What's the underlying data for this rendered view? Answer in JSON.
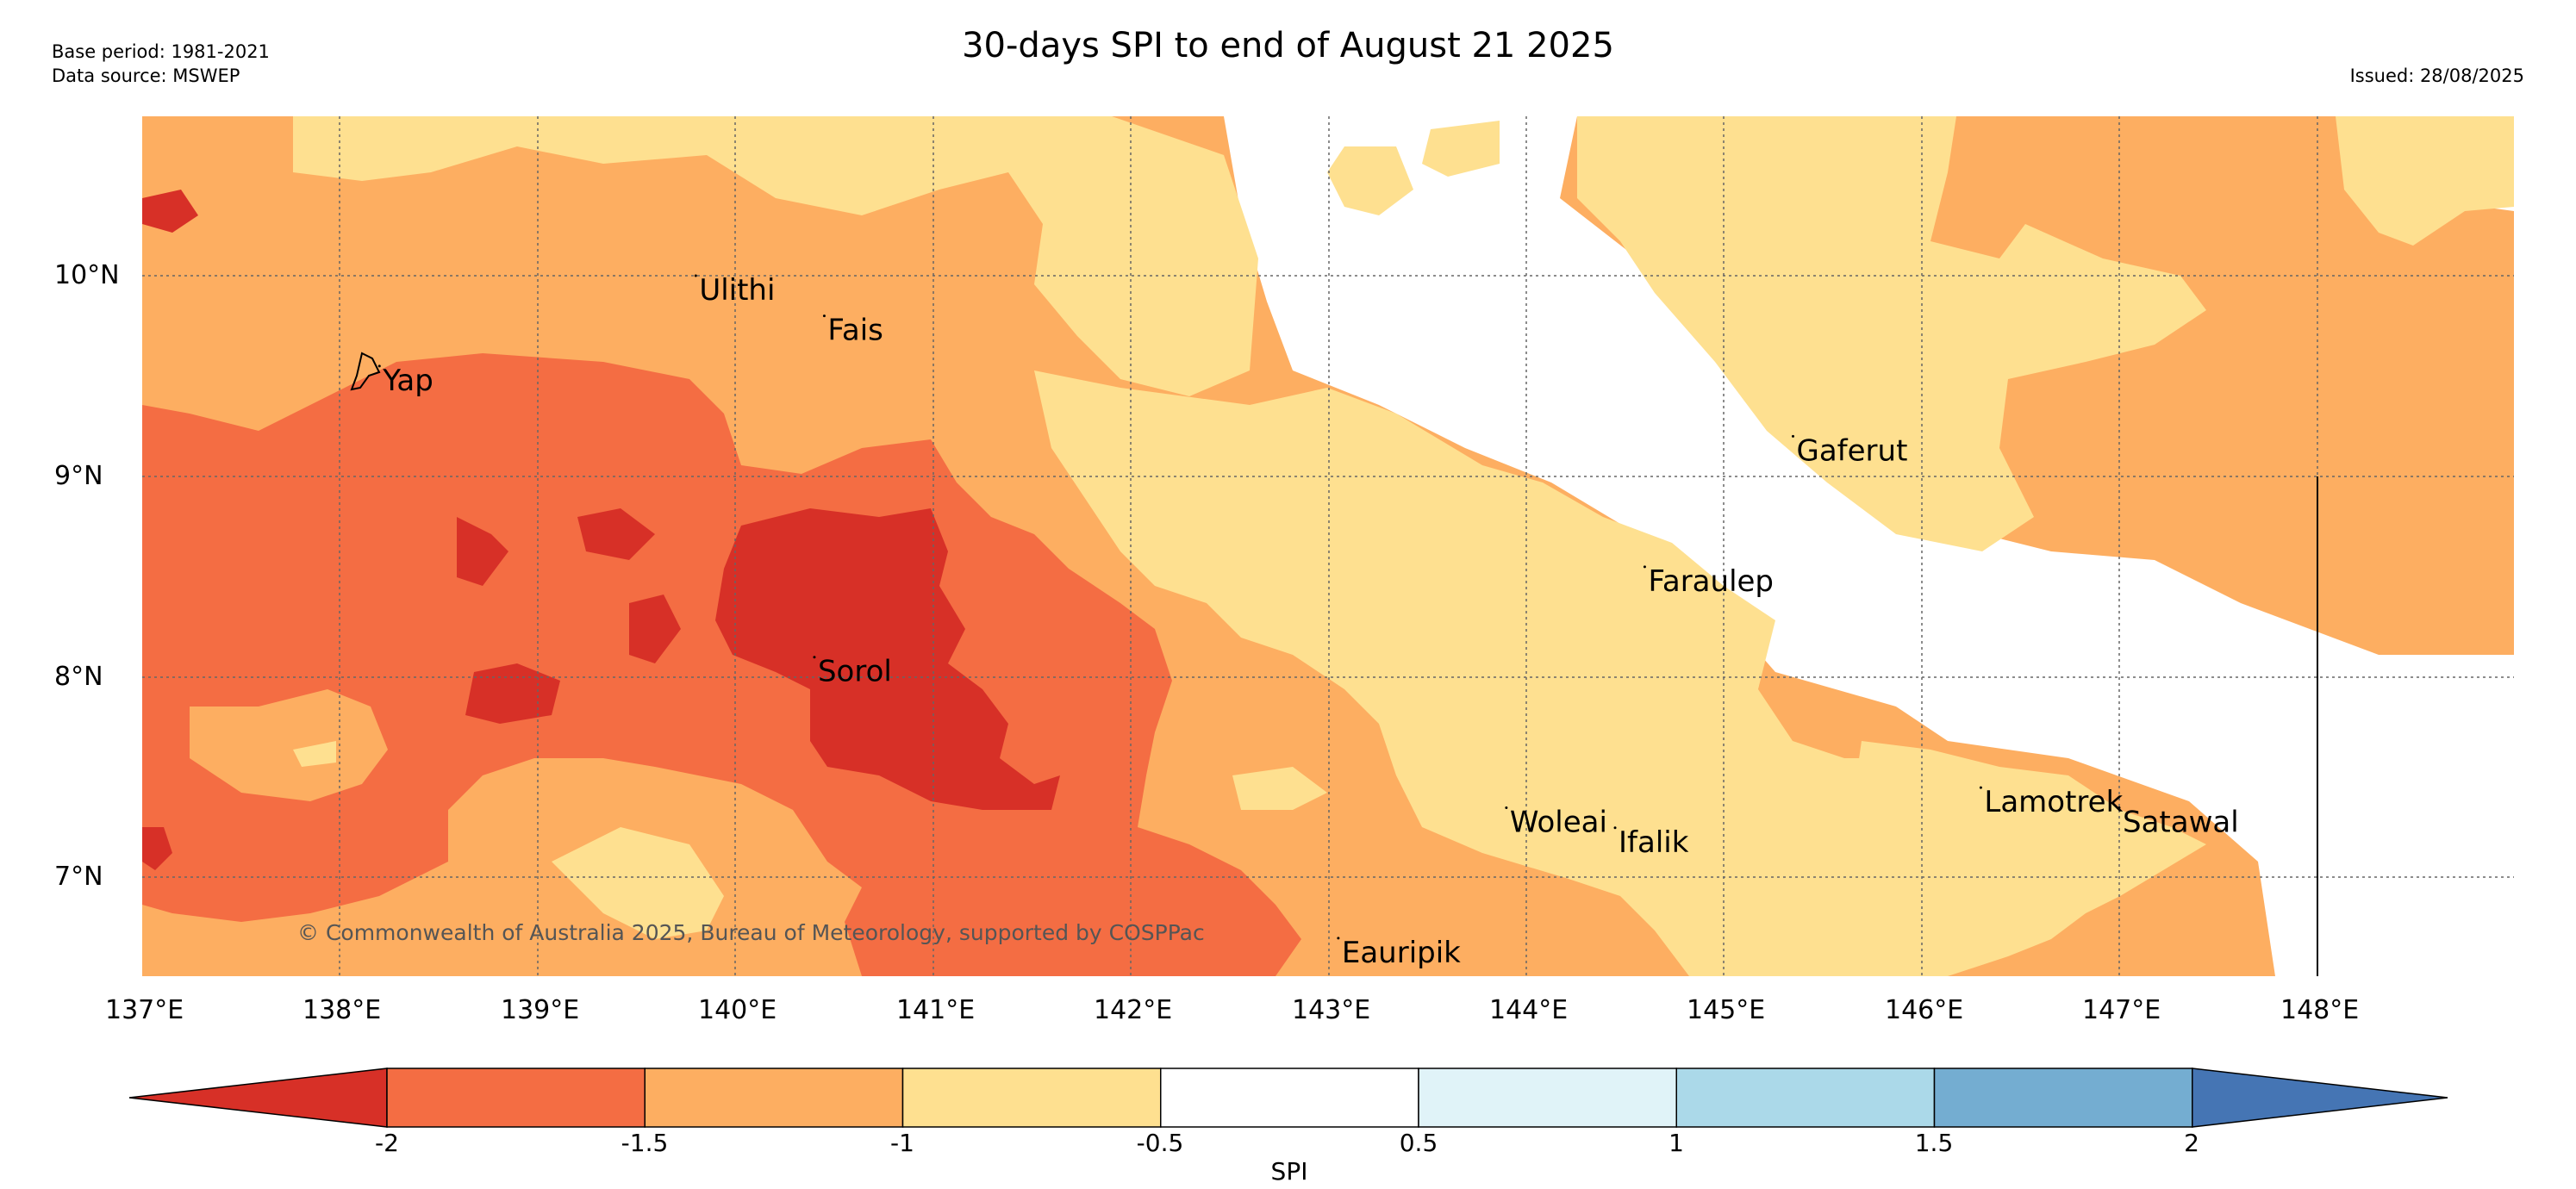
{
  "header": {
    "base_period": "Base period: 1981-2021",
    "data_source": "Data source: MSWEP",
    "title": "30-days SPI to end of August 21 2025",
    "issued": "Issued: 28/08/2025"
  },
  "map": {
    "lon_range": [
      137,
      149
    ],
    "lat_range": [
      6.5,
      10.8
    ],
    "x_ticks": [
      "137°E",
      "138°E",
      "139°E",
      "140°E",
      "141°E",
      "142°E",
      "143°E",
      "144°E",
      "145°E",
      "146°E",
      "147°E",
      "148°E"
    ],
    "y_ticks": [
      "10°N",
      "9°N",
      "8°N",
      "7°N"
    ],
    "copyright": "© Commonwealth of Australia 2025, Bureau of Meteorology, supported by COSPPac",
    "places": [
      {
        "name": "Yap",
        "lon": 138.2,
        "lat": 9.55
      },
      {
        "name": "Ulithi",
        "lon": 139.8,
        "lat": 10.0
      },
      {
        "name": "Fais",
        "lon": 140.45,
        "lat": 9.8
      },
      {
        "name": "Gaferut",
        "lon": 145.35,
        "lat": 9.2
      },
      {
        "name": "Faraulep",
        "lon": 144.6,
        "lat": 8.55
      },
      {
        "name": "Sorol",
        "lon": 140.4,
        "lat": 8.1
      },
      {
        "name": "Woleai",
        "lon": 143.9,
        "lat": 7.35
      },
      {
        "name": "Ifalik",
        "lon": 144.45,
        "lat": 7.25
      },
      {
        "name": "Lamotrek",
        "lon": 146.3,
        "lat": 7.45
      },
      {
        "name": "Satawal",
        "lon": 147.0,
        "lat": 7.35
      },
      {
        "name": "Eauripik",
        "lon": 143.05,
        "lat": 6.7
      }
    ]
  },
  "colorbar": {
    "label": "SPI",
    "ticks": [
      "-2",
      "-1.5",
      "-1",
      "-0.5",
      "0.5",
      "1",
      "1.5",
      "2"
    ],
    "colors": [
      "#d73027",
      "#f46d43",
      "#fdae61",
      "#fee090",
      "#ffffff",
      "#e0f3f8",
      "#abd9e9",
      "#74add1",
      "#4575b4"
    ]
  }
}
